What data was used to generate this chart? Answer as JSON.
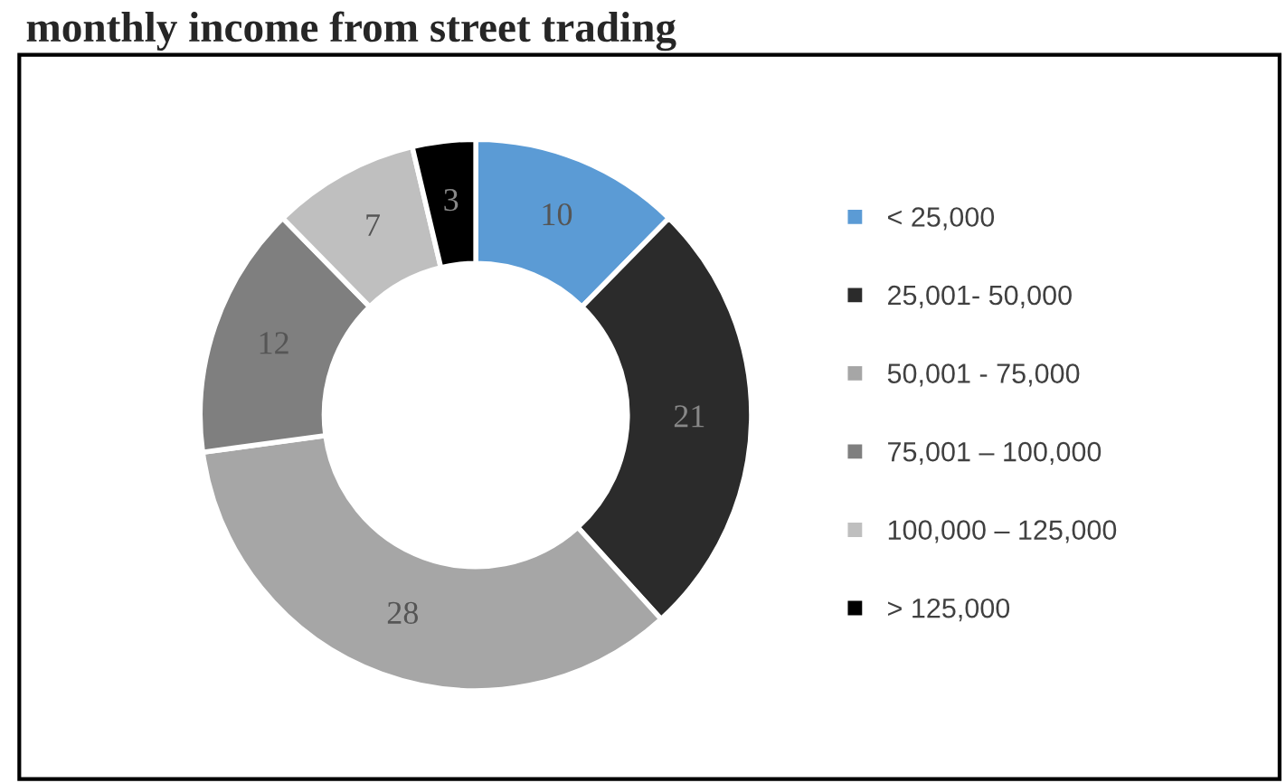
{
  "chart_data": {
    "type": "donut",
    "title": "monthly income from street trading",
    "categories": [
      "< 25,000",
      "25,001- 50,000",
      "50,001 - 75,000",
      "75,001 – 100,000",
      "100,000 – 125,000",
      "> 125,000"
    ],
    "values": [
      10,
      21,
      28,
      12,
      7,
      3
    ],
    "colors": [
      "#5b9bd5",
      "#2b2b2b",
      "#a6a6a6",
      "#7f7f7f",
      "#bfbfbf",
      "#000000"
    ],
    "data_labels": true,
    "legend": "right"
  }
}
